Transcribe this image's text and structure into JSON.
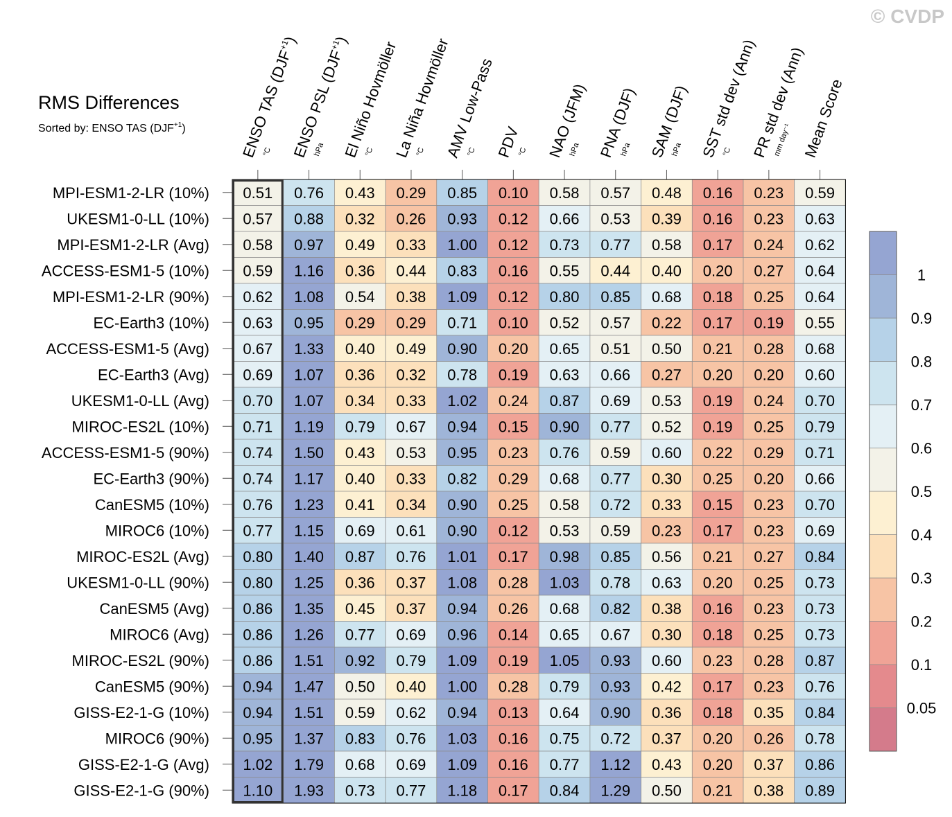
{
  "watermark": "© CVDP",
  "title": "RMS Differences",
  "subtitle": {
    "prefix": "Sorted by: ENSO TAS (DJF",
    "sup": "+1",
    "suffix": ")"
  },
  "chart_data": {
    "type": "heatmap",
    "title": "RMS Differences",
    "sorted_by": "ENSO TAS (DJF+1)",
    "columns": [
      {
        "label": "ENSO TAS (DJF",
        "sup": "+1",
        "tail": ")",
        "units": "°C"
      },
      {
        "label": "ENSO PSL (DJF",
        "sup": "+1",
        "tail": ")",
        "units": "hPa"
      },
      {
        "label": "El Niño Hovmöller",
        "sup": "",
        "tail": "",
        "units": "°C"
      },
      {
        "label": "La Niña Hovmöller",
        "sup": "",
        "tail": "",
        "units": "°C"
      },
      {
        "label": "AMV Low-Pass",
        "sup": "",
        "tail": "",
        "units": "°C"
      },
      {
        "label": "PDV",
        "sup": "",
        "tail": "",
        "units": "°C"
      },
      {
        "label": "NAO (JFM)",
        "sup": "",
        "tail": "",
        "units": "hPa"
      },
      {
        "label": "PNA (DJF)",
        "sup": "",
        "tail": "",
        "units": "hPa"
      },
      {
        "label": "SAM (DJF)",
        "sup": "",
        "tail": "",
        "units": "hPa"
      },
      {
        "label": "SST std dev (Ann)",
        "sup": "",
        "tail": "",
        "units": "°C"
      },
      {
        "label": "PR std dev (Ann)",
        "sup": "",
        "tail": "",
        "units": "mm day⁻¹"
      },
      {
        "label": "Mean Score",
        "sup": "",
        "tail": "",
        "units": ""
      }
    ],
    "rows": [
      "MPI-ESM1-2-LR (10%)",
      "UKESM1-0-LL (10%)",
      "MPI-ESM1-2-LR (Avg)",
      "ACCESS-ESM1-5 (10%)",
      "MPI-ESM1-2-LR (90%)",
      "EC-Earth3 (10%)",
      "ACCESS-ESM1-5 (Avg)",
      "EC-Earth3 (Avg)",
      "UKESM1-0-LL (Avg)",
      "MIROC-ES2L (10%)",
      "ACCESS-ESM1-5 (90%)",
      "EC-Earth3 (90%)",
      "CanESM5 (10%)",
      "MIROC6 (10%)",
      "MIROC-ES2L (Avg)",
      "UKESM1-0-LL (90%)",
      "CanESM5 (Avg)",
      "MIROC6 (Avg)",
      "MIROC-ES2L (90%)",
      "CanESM5 (90%)",
      "GISS-E2-1-G (10%)",
      "MIROC6 (90%)",
      "GISS-E2-1-G (Avg)",
      "GISS-E2-1-G (90%)"
    ],
    "values": [
      [
        "0.51",
        "0.76",
        "0.43",
        "0.29",
        "0.85",
        "0.10",
        "0.58",
        "0.57",
        "0.48",
        "0.16",
        "0.23",
        "0.59"
      ],
      [
        "0.57",
        "0.88",
        "0.32",
        "0.26",
        "0.93",
        "0.12",
        "0.66",
        "0.53",
        "0.39",
        "0.16",
        "0.23",
        "0.63"
      ],
      [
        "0.58",
        "0.97",
        "0.49",
        "0.33",
        "1.00",
        "0.12",
        "0.73",
        "0.77",
        "0.58",
        "0.17",
        "0.24",
        "0.62"
      ],
      [
        "0.59",
        "1.16",
        "0.36",
        "0.44",
        "0.83",
        "0.16",
        "0.55",
        "0.44",
        "0.40",
        "0.20",
        "0.27",
        "0.64"
      ],
      [
        "0.62",
        "1.08",
        "0.54",
        "0.38",
        "1.09",
        "0.12",
        "0.80",
        "0.85",
        "0.68",
        "0.18",
        "0.25",
        "0.64"
      ],
      [
        "0.63",
        "0.95",
        "0.29",
        "0.29",
        "0.71",
        "0.10",
        "0.52",
        "0.57",
        "0.22",
        "0.17",
        "0.19",
        "0.55"
      ],
      [
        "0.67",
        "1.33",
        "0.40",
        "0.49",
        "0.90",
        "0.20",
        "0.65",
        "0.51",
        "0.50",
        "0.21",
        "0.28",
        "0.68"
      ],
      [
        "0.69",
        "1.07",
        "0.36",
        "0.32",
        "0.78",
        "0.19",
        "0.63",
        "0.66",
        "0.27",
        "0.20",
        "0.20",
        "0.60"
      ],
      [
        "0.70",
        "1.07",
        "0.34",
        "0.33",
        "1.02",
        "0.24",
        "0.87",
        "0.69",
        "0.53",
        "0.19",
        "0.24",
        "0.70"
      ],
      [
        "0.71",
        "1.19",
        "0.79",
        "0.67",
        "0.94",
        "0.15",
        "0.90",
        "0.77",
        "0.52",
        "0.19",
        "0.25",
        "0.79"
      ],
      [
        "0.74",
        "1.50",
        "0.43",
        "0.53",
        "0.95",
        "0.23",
        "0.76",
        "0.59",
        "0.60",
        "0.22",
        "0.29",
        "0.71"
      ],
      [
        "0.74",
        "1.17",
        "0.40",
        "0.33",
        "0.82",
        "0.29",
        "0.68",
        "0.77",
        "0.30",
        "0.25",
        "0.20",
        "0.66"
      ],
      [
        "0.76",
        "1.23",
        "0.41",
        "0.34",
        "0.90",
        "0.25",
        "0.58",
        "0.72",
        "0.33",
        "0.15",
        "0.23",
        "0.70"
      ],
      [
        "0.77",
        "1.15",
        "0.69",
        "0.61",
        "0.90",
        "0.12",
        "0.53",
        "0.59",
        "0.23",
        "0.17",
        "0.23",
        "0.69"
      ],
      [
        "0.80",
        "1.40",
        "0.87",
        "0.76",
        "1.01",
        "0.17",
        "0.98",
        "0.85",
        "0.56",
        "0.21",
        "0.27",
        "0.84"
      ],
      [
        "0.80",
        "1.25",
        "0.36",
        "0.37",
        "1.08",
        "0.28",
        "1.03",
        "0.78",
        "0.63",
        "0.20",
        "0.25",
        "0.73"
      ],
      [
        "0.86",
        "1.35",
        "0.45",
        "0.37",
        "0.94",
        "0.26",
        "0.68",
        "0.82",
        "0.38",
        "0.16",
        "0.23",
        "0.73"
      ],
      [
        "0.86",
        "1.26",
        "0.77",
        "0.69",
        "0.96",
        "0.14",
        "0.65",
        "0.67",
        "0.30",
        "0.18",
        "0.25",
        "0.73"
      ],
      [
        "0.86",
        "1.51",
        "0.92",
        "0.79",
        "1.09",
        "0.19",
        "1.05",
        "0.93",
        "0.60",
        "0.23",
        "0.28",
        "0.87"
      ],
      [
        "0.94",
        "1.47",
        "0.50",
        "0.40",
        "1.00",
        "0.28",
        "0.79",
        "0.93",
        "0.42",
        "0.17",
        "0.23",
        "0.76"
      ],
      [
        "0.94",
        "1.51",
        "0.59",
        "0.62",
        "0.94",
        "0.13",
        "0.64",
        "0.90",
        "0.36",
        "0.18",
        "0.35",
        "0.84"
      ],
      [
        "0.95",
        "1.37",
        "0.83",
        "0.76",
        "1.03",
        "0.16",
        "0.75",
        "0.72",
        "0.37",
        "0.20",
        "0.26",
        "0.78"
      ],
      [
        "1.02",
        "1.79",
        "0.68",
        "0.69",
        "1.09",
        "0.16",
        "0.77",
        "1.12",
        "0.43",
        "0.20",
        "0.37",
        "0.86"
      ],
      [
        "1.10",
        "1.93",
        "0.73",
        "0.77",
        "1.18",
        "0.17",
        "0.84",
        "1.29",
        "0.50",
        "0.21",
        "0.38",
        "0.89"
      ]
    ],
    "highlighted_column": 0,
    "colorbar": {
      "levels": [
        "0.05",
        "0.1",
        "0.2",
        "0.3",
        "0.4",
        "0.5",
        "0.6",
        "0.7",
        "0.8",
        "0.9",
        "1"
      ],
      "colors_low_to_high": [
        "#d47b8b",
        "#e48a8d",
        "#f0a396",
        "#f7c4a5",
        "#fce0bb",
        "#fdf0d2",
        "#f3f2e8",
        "#e4f0f5",
        "#cde4ef",
        "#b6d2e8",
        "#9fb5d8",
        "#95a5d2"
      ]
    }
  }
}
